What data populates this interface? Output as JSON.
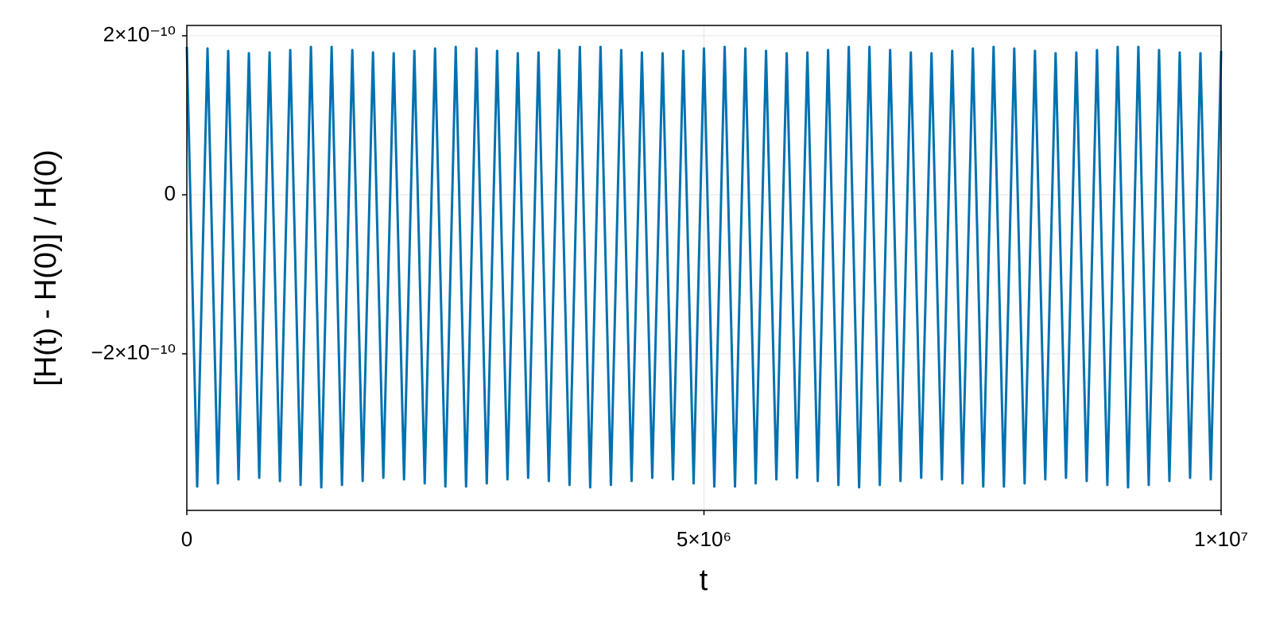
{
  "chart_data": {
    "type": "line",
    "xlabel": "t",
    "ylabel": "[H(t) - H(0)] / H(0)",
    "x": [
      0,
      100000,
      200000,
      300000,
      400000,
      500000,
      600000,
      700000,
      800000,
      900000,
      1000000,
      1100000,
      1200000,
      1300000,
      1400000,
      1500000,
      1600000,
      1700000,
      1800000,
      1900000,
      2000000,
      2100000,
      2200000,
      2300000,
      2400000,
      2500000,
      2600000,
      2700000,
      2800000,
      2900000,
      3000000,
      3100000,
      3200000,
      3300000,
      3400000,
      3500000,
      3600000,
      3700000,
      3800000,
      3900000,
      4000000,
      4100000,
      4200000,
      4300000,
      4400000,
      4500000,
      4600000,
      4700000,
      4800000,
      4900000,
      5000000,
      5100000,
      5200000,
      5300000,
      5400000,
      5500000,
      5600000,
      5700000,
      5800000,
      5900000,
      6000000,
      6100000,
      6200000,
      6300000,
      6400000,
      6500000,
      6600000,
      6700000,
      6800000,
      6900000,
      7000000,
      7100000,
      7200000,
      7300000,
      7400000,
      7500000,
      7600000,
      7700000,
      7800000,
      7900000,
      8000000,
      8100000,
      8200000,
      8300000,
      8400000,
      8500000,
      8600000,
      8700000,
      8800000,
      8900000,
      9000000,
      9100000,
      9200000,
      9300000,
      9400000,
      9500000,
      9600000,
      9700000,
      9800000,
      9900000,
      10000000
    ],
    "series": [
      {
        "color": "#0071b0",
        "values": [
          1.86e-10,
          -3.67e-10,
          1.84e-10,
          -3.63e-10,
          1.81e-10,
          -3.58e-10,
          1.78e-10,
          -3.56e-10,
          1.79e-10,
          -3.6e-10,
          1.82e-10,
          -3.65e-10,
          1.86e-10,
          -3.68e-10,
          1.86e-10,
          -3.65e-10,
          1.82e-10,
          -3.6e-10,
          1.79e-10,
          -3.56e-10,
          1.78e-10,
          -3.58e-10,
          1.81e-10,
          -3.63e-10,
          1.84e-10,
          -3.67e-10,
          1.86e-10,
          -3.67e-10,
          1.84e-10,
          -3.63e-10,
          1.81e-10,
          -3.58e-10,
          1.78e-10,
          -3.56e-10,
          1.79e-10,
          -3.6e-10,
          1.82e-10,
          -3.65e-10,
          1.86e-10,
          -3.68e-10,
          1.86e-10,
          -3.65e-10,
          1.82e-10,
          -3.6e-10,
          1.79e-10,
          -3.56e-10,
          1.78e-10,
          -3.58e-10,
          1.81e-10,
          -3.63e-10,
          1.84e-10,
          -3.67e-10,
          1.86e-10,
          -3.67e-10,
          1.84e-10,
          -3.63e-10,
          1.81e-10,
          -3.58e-10,
          1.78e-10,
          -3.56e-10,
          1.79e-10,
          -3.6e-10,
          1.82e-10,
          -3.65e-10,
          1.86e-10,
          -3.68e-10,
          1.86e-10,
          -3.65e-10,
          1.82e-10,
          -3.6e-10,
          1.79e-10,
          -3.56e-10,
          1.78e-10,
          -3.58e-10,
          1.81e-10,
          -3.63e-10,
          1.84e-10,
          -3.67e-10,
          1.86e-10,
          -3.67e-10,
          1.84e-10,
          -3.63e-10,
          1.81e-10,
          -3.58e-10,
          1.78e-10,
          -3.56e-10,
          1.79e-10,
          -3.6e-10,
          1.82e-10,
          -3.65e-10,
          1.86e-10,
          -3.68e-10,
          1.86e-10,
          -3.65e-10,
          1.82e-10,
          -3.6e-10,
          1.79e-10,
          -3.56e-10,
          1.78e-10,
          -3.58e-10,
          1.81e-10
        ]
      }
    ],
    "xlim": [
      0,
      10000000
    ],
    "xticks": [
      0,
      {
        "value": 5000000,
        "label": "5×10⁶"
      },
      {
        "value": 10000000,
        "label": "1×10⁷"
      }
    ],
    "ylim": [
      -3.97e-10,
      2.13e-10
    ],
    "yticks": [
      {
        "value": -2e-10,
        "label": "−2×10⁻¹⁰"
      },
      0,
      {
        "value": 2e-10,
        "label": "2×10⁻¹⁰"
      }
    ],
    "grid": true
  }
}
